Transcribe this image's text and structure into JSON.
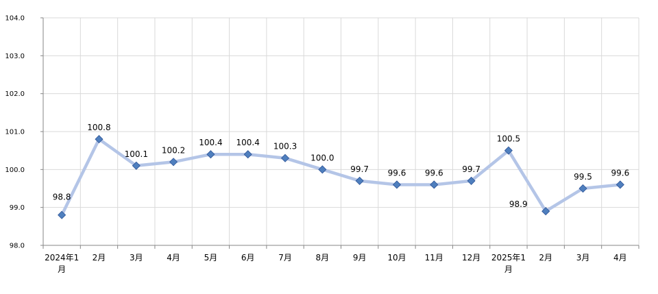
{
  "chart_data": {
    "type": "line",
    "title": "",
    "xlabel": "",
    "ylabel": "",
    "ylim": [
      98.0,
      104.0
    ],
    "yticks": [
      "98.0",
      "99.0",
      "100.0",
      "101.0",
      "102.0",
      "103.0",
      "104.0"
    ],
    "grid": true,
    "categories": [
      "2024年1月",
      "2月",
      "3月",
      "4月",
      "5月",
      "6月",
      "7月",
      "8月",
      "9月",
      "10月",
      "11月",
      "12月",
      "2025年1月",
      "2月",
      "3月",
      "4月"
    ],
    "series": [
      {
        "values": [
          98.8,
          100.8,
          100.1,
          100.2,
          100.4,
          100.4,
          100.3,
          100.0,
          99.7,
          99.6,
          99.6,
          99.7,
          100.5,
          98.9,
          99.5,
          99.6
        ],
        "labels": [
          "98.8",
          "100.8",
          "100.1",
          "100.2",
          "100.4",
          "100.4",
          "100.3",
          "100.0",
          "99.7",
          "99.6",
          "99.6",
          "99.7",
          "100.5",
          "98.9",
          "99.5",
          "99.6"
        ],
        "line_color": "#b4c5e7",
        "marker_color": "#4f7fbe"
      }
    ]
  }
}
